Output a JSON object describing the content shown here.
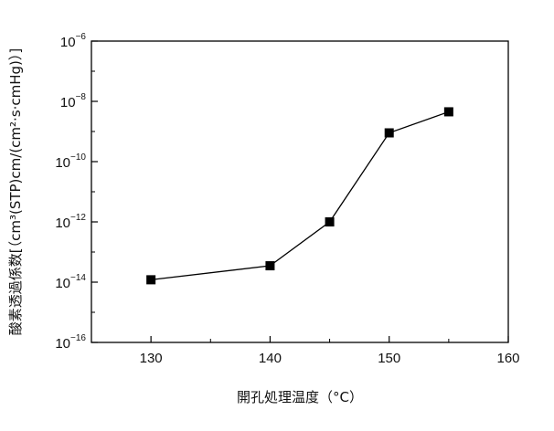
{
  "chart_data": {
    "type": "line",
    "xlabel": "開孔処理温度（°C）",
    "ylabel": "酸素透過係数[（cm³(STP)cm/(cm²·s·cmHg)）]",
    "xlim": [
      125,
      160
    ],
    "ylim_log10": [
      -16,
      -6
    ],
    "y_scale": "log",
    "x_ticks": [
      130,
      140,
      150,
      160
    ],
    "x_tick_labels": [
      "130",
      "140",
      "150",
      "160"
    ],
    "y_tick_exponents": [
      -16,
      -14,
      -12,
      -10,
      -8,
      -6
    ],
    "y_tick_base": "10",
    "y_tick_exponent_labels": [
      "−16",
      "−14",
      "−12",
      "−10",
      "−8",
      "−6"
    ],
    "grid": false,
    "marker": "square",
    "series": [
      {
        "x": [
          130,
          140,
          145,
          150,
          155
        ],
        "y": [
          1.2e-14,
          3.5e-14,
          1e-12,
          9e-10,
          4.5e-09
        ]
      }
    ]
  }
}
